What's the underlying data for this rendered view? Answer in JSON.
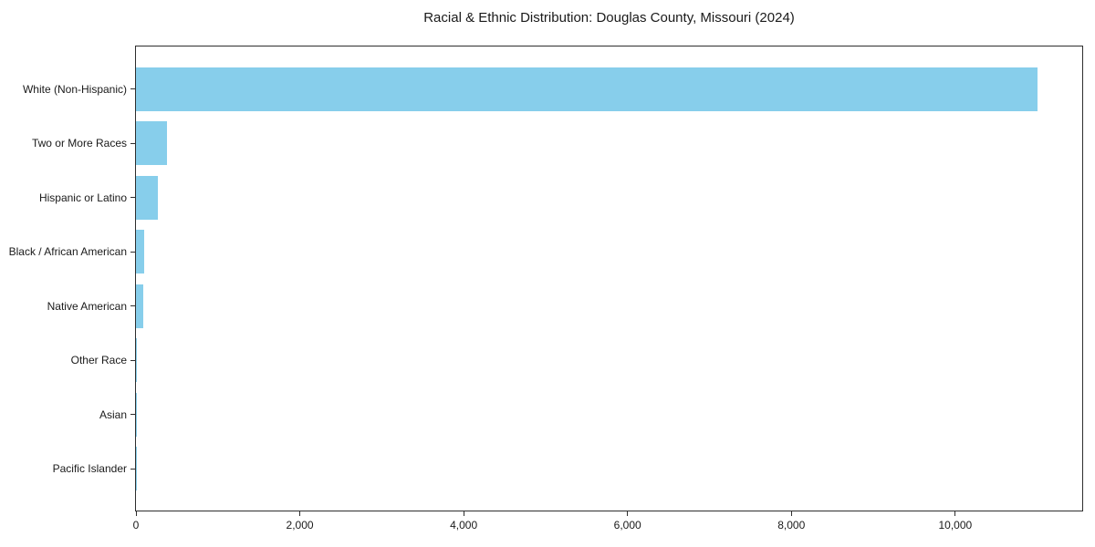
{
  "title": "Racial & Ethnic Distribution: Douglas County, Missouri (2024)",
  "colors": {
    "bar": "#87CEEB",
    "axis": "#2e2e2e",
    "text": "#1a1a1a",
    "background": "#ffffff"
  },
  "chart_data": {
    "type": "bar",
    "orientation": "horizontal",
    "title": "Racial & Ethnic Distribution: Douglas County, Missouri (2024)",
    "categories": [
      "White (Non-Hispanic)",
      "Two or More Races",
      "Hispanic or Latino",
      "Black / African American",
      "Native American",
      "Other Race",
      "Asian",
      "Pacific Islander"
    ],
    "values": [
      11000,
      380,
      270,
      100,
      90,
      15,
      10,
      2
    ],
    "xlabel": "",
    "ylabel": "",
    "xlim": [
      0,
      11550
    ],
    "xticks": [
      0,
      2000,
      4000,
      6000,
      8000,
      10000
    ],
    "xtick_labels": [
      "0",
      "2,000",
      "4,000",
      "6,000",
      "8,000",
      "10,000"
    ],
    "grid": false,
    "legend": null,
    "bar_color": "#87CEEB",
    "bar_height_fraction": 0.8
  }
}
